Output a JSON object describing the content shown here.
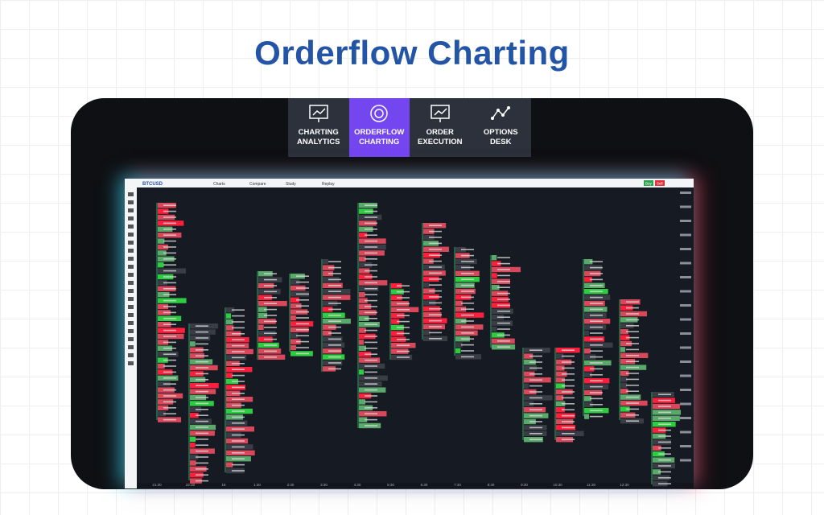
{
  "header": {
    "title": "Orderflow Charting"
  },
  "tabs": [
    {
      "label": "CHARTING ANALYTICS",
      "active": false
    },
    {
      "label": "ORDERFLOW CHARTING",
      "active": true
    },
    {
      "label": "ORDER EXECUTION",
      "active": false
    },
    {
      "label": "OPTIONS DESK",
      "active": false
    }
  ],
  "toolbar": {
    "symbol": "BTCUSD",
    "items": [
      "Charts",
      "Compare",
      "Study",
      "Replay"
    ],
    "buy": "Buy",
    "sell": "Sell"
  },
  "time_axis": [
    "21:30",
    "22:30",
    "16",
    "1:30",
    "2:30",
    "3:30",
    "4:30",
    "5:30",
    "6:30",
    "7:30",
    "8:30",
    "9:30",
    "10:30",
    "11:30",
    "12:30"
  ]
}
